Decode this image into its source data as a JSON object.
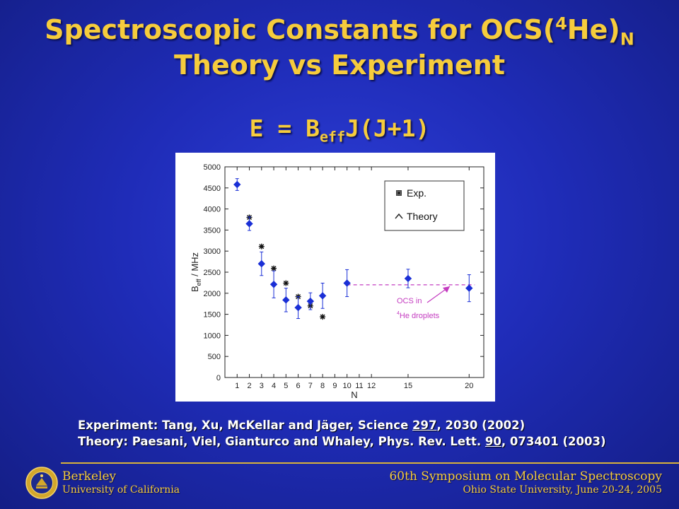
{
  "title": {
    "line1_prefix": "Spectroscopic Constants for OCS(",
    "line1_sup": "4",
    "line1_mid": "He)",
    "line1_sub": "N",
    "line2": "Theory vs Experiment"
  },
  "equation": {
    "pre": "E = B",
    "sub": "eff",
    "post": "J(J+1)"
  },
  "chart_data": {
    "type": "scatter",
    "ylabel_main": "B",
    "ylabel_sub": "eff",
    "ylabel_rest": " / MHz",
    "xlabel": "N",
    "ylim": [
      0,
      5000
    ],
    "yticks": [
      0,
      500,
      1000,
      1500,
      2000,
      2500,
      3000,
      3500,
      4000,
      4500,
      5000
    ],
    "xticks": [
      1,
      2,
      3,
      4,
      5,
      6,
      7,
      8,
      9,
      10,
      11,
      12,
      15,
      20
    ],
    "grid": false,
    "legend_position": "top-right",
    "series": [
      {
        "name": "Exp.",
        "marker": "diamond",
        "color": "#1a2fd6",
        "x": [
          1,
          2,
          3,
          4,
          5,
          6,
          7,
          8,
          10,
          15,
          20
        ],
        "y": [
          4580,
          3650,
          2700,
          2210,
          1840,
          1660,
          1810,
          1940,
          2240,
          2350,
          2120
        ],
        "err": [
          140,
          160,
          280,
          320,
          280,
          260,
          200,
          300,
          320,
          220,
          320
        ]
      },
      {
        "name": "Theory",
        "marker": "star",
        "color": "#111111",
        "x": [
          2,
          3,
          4,
          5,
          6,
          7,
          8
        ],
        "y": [
          3800,
          3110,
          2590,
          2240,
          1920,
          1700,
          1440
        ]
      }
    ],
    "reference_line": {
      "y": 2200,
      "x_from": 10,
      "x_to": 20,
      "color": "#c43cc0",
      "style": "dashed"
    },
    "annotation": {
      "line1": "OCS in",
      "sup": "4",
      "line2": "He droplets",
      "color": "#c43cc0"
    }
  },
  "references": {
    "r1_pre": "Experiment: Tang, Xu, McKellar and Jäger, Science ",
    "r1_vol": "297",
    "r1_post": ", 2030 (2002)",
    "r2_pre": "Theory: Paesani, Viel, Gianturco and Whaley, Phys. Rev. Lett. ",
    "r2_vol": "90",
    "r2_post": ", 073401 (2003)"
  },
  "footer": {
    "left_line1": "Berkeley",
    "left_line2": "University of California",
    "right_line1": "60th Symposium on Molecular Spectroscopy",
    "right_line2": "Ohio State University, June 20-24, 2005"
  },
  "colors": {
    "title": "#f6cc3c",
    "background": "#2033c4"
  }
}
